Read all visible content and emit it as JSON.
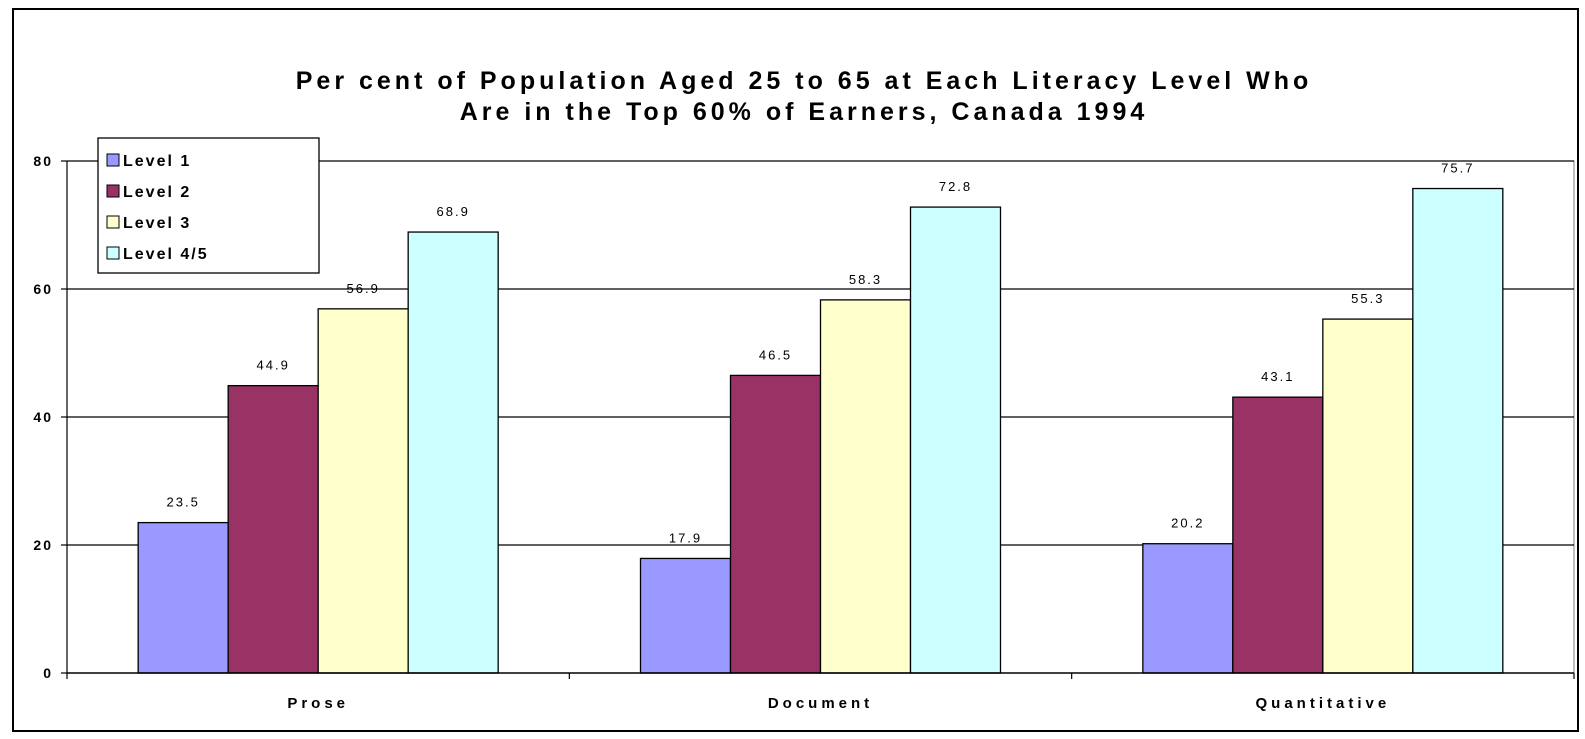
{
  "chart_data": {
    "type": "bar",
    "title_lines": [
      "Per cent of Population Aged 25 to 65 at Each Literacy Level Who",
      "Are in the Top 60% of Earners, Canada 1994"
    ],
    "categories": [
      "Prose",
      "Document",
      "Quantitative"
    ],
    "series": [
      {
        "name": "Level 1",
        "color": "#9999ff",
        "values": [
          23.5,
          17.9,
          20.2
        ]
      },
      {
        "name": "Level 2",
        "color": "#993366",
        "values": [
          44.9,
          46.5,
          43.1
        ]
      },
      {
        "name": "Level 3",
        "color": "#ffffcc",
        "values": [
          56.9,
          58.3,
          55.3
        ]
      },
      {
        "name": "Level 4/5",
        "color": "#ccffff",
        "values": [
          68.9,
          72.8,
          75.7
        ]
      }
    ],
    "value_labels": [
      [
        "23.5",
        "17.9",
        "20.2"
      ],
      [
        "44.9",
        "46.5",
        "43.1"
      ],
      [
        "56.9",
        "58.3",
        "55.3"
      ],
      [
        "68.9",
        "72.8",
        "75.7"
      ]
    ],
    "y_ticks": [
      "0",
      "20",
      "40",
      "60",
      "80"
    ],
    "ylim": [
      0,
      80
    ],
    "xlabel": "",
    "ylabel": "",
    "grid": true,
    "legend_position": "top-left"
  }
}
